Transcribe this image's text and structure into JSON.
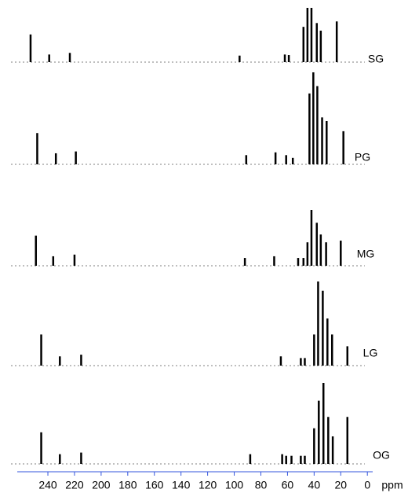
{
  "chart_data": {
    "type": "stick",
    "xlabel": "ppm",
    "xlim": [
      263,
      -4
    ],
    "xticks": [
      240,
      220,
      200,
      180,
      160,
      140,
      120,
      100,
      80,
      60,
      40,
      20,
      0
    ],
    "ylim": [
      0,
      100
    ],
    "axis_color": "#3355dd",
    "series": [
      {
        "name": "SG",
        "color": "#000000",
        "x": [
          253,
          239,
          223.5,
          96,
          62,
          59,
          48,
          45,
          42,
          38,
          35,
          23
        ],
        "values": [
          51,
          14,
          17,
          12,
          14,
          13,
          65,
          100,
          100,
          72,
          58,
          75
        ]
      },
      {
        "name": "PG",
        "color": "#000000",
        "x": [
          248,
          234,
          219,
          91,
          69,
          61,
          56,
          43.5,
          40.6,
          37.6,
          34,
          30.6,
          18
        ],
        "values": [
          34,
          12,
          14,
          10,
          13,
          10,
          7,
          77,
          100,
          85,
          51,
          47,
          36
        ]
      },
      {
        "name": "MG",
        "color": "#000000",
        "x": [
          249,
          236,
          220,
          92,
          70,
          52,
          48,
          45,
          42,
          38,
          35,
          31,
          20
        ],
        "values": [
          54,
          17,
          20,
          14,
          17,
          14,
          14,
          42,
          100,
          77,
          56,
          42,
          45
        ]
      },
      {
        "name": "LG",
        "color": "#000000",
        "x": [
          245,
          231,
          215,
          65,
          50,
          47,
          40,
          37,
          33.5,
          30,
          26.5,
          15
        ],
        "values": [
          37,
          11,
          13,
          11,
          9,
          9,
          37,
          100,
          89,
          56,
          37,
          23
        ]
      },
      {
        "name": "OG",
        "color": "#000000",
        "x": [
          245,
          231,
          215,
          88,
          64,
          61,
          57,
          50,
          47,
          40,
          36.5,
          33,
          29.4,
          26,
          15
        ],
        "values": [
          39,
          12,
          14,
          12,
          12,
          10,
          10,
          10,
          10,
          44,
          78,
          100,
          58,
          34,
          58
        ]
      }
    ]
  }
}
